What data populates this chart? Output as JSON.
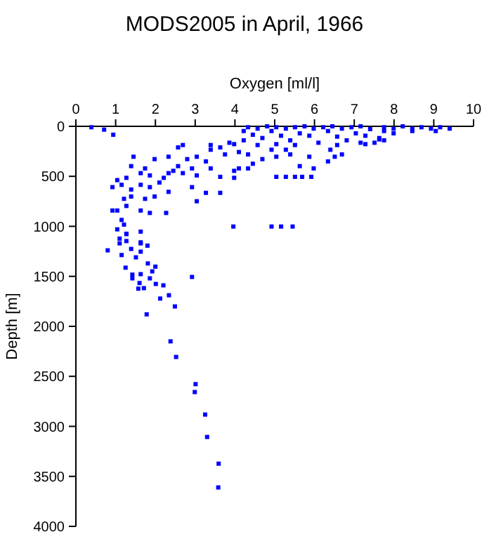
{
  "chart_data": {
    "type": "scatter",
    "title": "MODS2005 in April, 1966",
    "xlabel": "Oxygen [ml/l]",
    "ylabel": "Depth [m]",
    "marker": "square",
    "grid": false,
    "xlim": [
      0,
      10
    ],
    "xticks": [
      0,
      1,
      2,
      3,
      4,
      5,
      6,
      7,
      8,
      9,
      10
    ],
    "ylim": [
      4000,
      0
    ],
    "yticks": [
      0,
      500,
      1000,
      1500,
      2000,
      2500,
      3000,
      3500,
      4000
    ],
    "series": [
      {
        "color": "#0000ff",
        "x": [
          0.39,
          0.71,
          0.94,
          4.33,
          4.57,
          4.81,
          5.04,
          5.28,
          5.51,
          5.75,
          5.98,
          6.22,
          6.45,
          6.69,
          6.93,
          7.16,
          7.4,
          7.75,
          7.99,
          8.22,
          8.46,
          8.69,
          8.93,
          9.16,
          9.4,
          4.92,
          5.63,
          6.34,
          7.04,
          7.75,
          7.99,
          8.46,
          9.05,
          5.16,
          5.87,
          6.57,
          7.28,
          7.63,
          6.81,
          6.1,
          5.39,
          4.69,
          4.45,
          4.22,
          4.57,
          5.04,
          5.51,
          6.57,
          7.16,
          7.51,
          7.75,
          6.4,
          6.69,
          5.87,
          5.39,
          5.04,
          5.63,
          5.98,
          6.34,
          6.51,
          7.28,
          7.63,
          4.22,
          3.86,
          3.63,
          3.39,
          3.75,
          4.1,
          4.33,
          3.04,
          2.8,
          3.27,
          2.92,
          2.57,
          2.45,
          2.69,
          2.33,
          3.04,
          3.39,
          3.98,
          4.33,
          4.69,
          3.63,
          3.98,
          2.21,
          2.1,
          1.86,
          1.74,
          1.98,
          2.33,
          1.45,
          1.39,
          1.63,
          1.27,
          1.04,
          0.92,
          1.15,
          1.39,
          1.63,
          1.86,
          2.33,
          2.92,
          3.27,
          3.63,
          1.98,
          1.74,
          1.39,
          1.21,
          1.04,
          1.27,
          0.92,
          1.63,
          1.86,
          2.27,
          3.04,
          1.15,
          1.21,
          1.04,
          1.27,
          1.1,
          1.63,
          1.27,
          1.63,
          0.8,
          2.57,
          2.69,
          3.39,
          3.98,
          4.92,
          5.28,
          4.1,
          4.45,
          5.04,
          5.28,
          5.51,
          5.69,
          5.92,
          4.92,
          5.16,
          5.45,
          3.96,
          2.92,
          1.78,
          2.38,
          2.52,
          3.01,
          2.99,
          3.25,
          3.3,
          3.59,
          3.58,
          2.49,
          2.34,
          2.12,
          2.2,
          2.01,
          1.57,
          1.71,
          1.42,
          1.6,
          1.86,
          1.92,
          2.0,
          1.63,
          1.25,
          1.42,
          1.81,
          1.51,
          1.15,
          1.39,
          1.63,
          1.1,
          1.27,
          1.8,
          1.63
        ],
        "values": [
          9,
          33,
          84,
          9,
          23,
          0,
          9,
          23,
          9,
          0,
          23,
          9,
          0,
          23,
          9,
          0,
          28,
          9,
          23,
          0,
          23,
          9,
          23,
          9,
          23,
          47,
          70,
          47,
          70,
          47,
          70,
          47,
          47,
          94,
          94,
          103,
          94,
          117,
          140,
          164,
          140,
          117,
          84,
          140,
          187,
          178,
          187,
          187,
          164,
          164,
          140,
          234,
          281,
          304,
          281,
          304,
          398,
          421,
          351,
          304,
          178,
          131,
          47,
          164,
          211,
          234,
          281,
          257,
          281,
          304,
          328,
          351,
          421,
          398,
          445,
          468,
          468,
          491,
          421,
          445,
          421,
          328,
          505,
          515,
          515,
          562,
          491,
          421,
          328,
          304,
          304,
          398,
          468,
          515,
          538,
          608,
          585,
          632,
          585,
          608,
          655,
          608,
          665,
          665,
          702,
          725,
          702,
          725,
          842,
          796,
          842,
          842,
          866,
          866,
          749,
          936,
          983,
          1030,
          1076,
          1123,
          1053,
          1076,
          1170,
          1240,
          211,
          187,
          187,
          178,
          234,
          234,
          421,
          374,
          505,
          505,
          505,
          505,
          505,
          1002,
          1002,
          1002,
          1002,
          1506,
          1880,
          2150,
          2306,
          2578,
          2657,
          2882,
          3106,
          3373,
          3611,
          1801,
          1689,
          1722,
          1590,
          1576,
          1623,
          1618,
          1520,
          1567,
          1520,
          1450,
          1403,
          1478,
          1413,
          1483,
          1371,
          1310,
          1287,
          1226,
          1253,
          1170,
          1147,
          1193,
          1160
        ]
      }
    ]
  }
}
